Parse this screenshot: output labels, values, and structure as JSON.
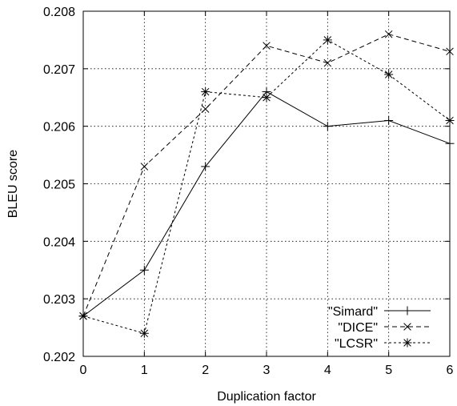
{
  "chart_data": {
    "type": "line",
    "xlabel": "Duplication factor",
    "ylabel": "BLEU score",
    "xlim": [
      0,
      6
    ],
    "ylim": [
      0.202,
      0.208
    ],
    "xticks": [
      "0",
      "1",
      "2",
      "3",
      "4",
      "5",
      "6"
    ],
    "yticks": [
      "0.202",
      "0.203",
      "0.204",
      "0.205",
      "0.206",
      "0.207",
      "0.208"
    ],
    "grid": true,
    "legend_position": "bottom-right",
    "x": [
      0,
      1,
      2,
      3,
      4,
      5,
      6
    ],
    "series": [
      {
        "name": "\"Simard\"",
        "marker": "plus",
        "dash": "solid",
        "values": [
          0.2027,
          0.2035,
          0.2053,
          0.2066,
          0.206,
          0.2061,
          0.2057
        ]
      },
      {
        "name": "\"DICE\"",
        "marker": "cross",
        "dash": "dashed",
        "values": [
          0.2027,
          0.2053,
          0.2063,
          0.2074,
          0.2071,
          0.2076,
          0.2073
        ]
      },
      {
        "name": "\"LCSR\"",
        "marker": "star",
        "dash": "dotted",
        "values": [
          0.2027,
          0.2024,
          0.2066,
          0.2065,
          0.2075,
          0.2069,
          0.2061
        ]
      }
    ]
  }
}
